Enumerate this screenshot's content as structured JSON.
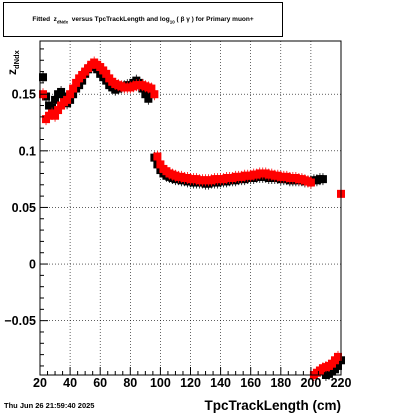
{
  "title": {
    "prefix": "Fitted",
    "z_sym": "z",
    "z_sub": "dNdx",
    "middle": "versus TpcTrackLength and log",
    "log_sub": "10",
    "paren": "( β γ )",
    "suffix": "for Primary muon+"
  },
  "footer_date": "Thu Jun 26 21:59:40 2025",
  "chart_data": {
    "type": "scatter",
    "xlabel": "TpcTrackLength (cm)",
    "ylabel_main": "z",
    "ylabel_sub": "dNdx",
    "xlim": [
      20,
      220
    ],
    "ylim": [
      -0.098,
      0.197
    ],
    "xticks": [
      20,
      40,
      60,
      80,
      100,
      120,
      140,
      160,
      180,
      200,
      220
    ],
    "yticks": [
      -0.05,
      0,
      0.05,
      0.1,
      0.15
    ],
    "ytick_labels": [
      "−0.05",
      "0",
      "0.05",
      "0.1",
      "0.15"
    ],
    "grid": true,
    "series": [
      {
        "color": "#000000",
        "x": [
          22,
          24,
          26,
          28,
          30,
          32,
          34,
          36,
          38,
          40,
          42,
          44,
          46,
          48,
          50,
          52,
          54,
          56,
          58,
          60,
          62,
          64,
          66,
          68,
          70,
          72,
          74,
          76,
          78,
          80,
          82,
          84,
          86,
          88,
          90,
          92,
          94,
          96,
          98,
          100,
          102,
          104,
          106,
          108,
          110,
          112,
          114,
          116,
          118,
          120,
          122,
          124,
          126,
          128,
          130,
          132,
          134,
          136,
          138,
          140,
          142,
          144,
          146,
          148,
          150,
          152,
          154,
          156,
          158,
          160,
          162,
          164,
          166,
          168,
          170,
          172,
          174,
          176,
          178,
          180,
          182,
          184,
          186,
          188,
          190,
          192,
          194,
          196,
          198,
          200,
          202,
          204,
          206,
          208,
          210,
          212,
          214,
          216,
          218,
          220
        ],
        "y": [
          0.165,
          0.148,
          0.14,
          0.138,
          0.145,
          0.15,
          0.152,
          0.148,
          0.142,
          0.145,
          0.15,
          0.155,
          0.158,
          0.162,
          0.168,
          0.172,
          0.174,
          0.176,
          0.172,
          0.168,
          0.165,
          0.162,
          0.158,
          0.156,
          0.154,
          0.155,
          0.156,
          0.157,
          0.158,
          0.158,
          0.16,
          0.162,
          0.16,
          0.155,
          0.15,
          0.146,
          0.15,
          0.094,
          0.088,
          0.083,
          0.08,
          0.078,
          0.077,
          0.076,
          0.075,
          0.075,
          0.074,
          0.074,
          0.073,
          0.073,
          0.072,
          0.072,
          0.072,
          0.072,
          0.071,
          0.071,
          0.072,
          0.072,
          0.072,
          0.073,
          0.073,
          0.073,
          0.074,
          0.074,
          0.074,
          0.075,
          0.075,
          0.075,
          0.076,
          0.076,
          0.076,
          0.077,
          0.077,
          0.077,
          0.077,
          0.076,
          0.076,
          0.076,
          0.076,
          0.075,
          0.075,
          0.075,
          0.074,
          0.074,
          0.074,
          0.074,
          0.074,
          0.073,
          0.073,
          0.073,
          0.074,
          0.074,
          0.075,
          0.075,
          -0.098,
          -0.097,
          -0.095,
          -0.093,
          -0.09,
          -0.085
        ]
      },
      {
        "color": "#ff0000",
        "x": [
          22,
          24,
          26,
          28,
          30,
          32,
          34,
          36,
          38,
          40,
          42,
          44,
          46,
          48,
          50,
          52,
          54,
          56,
          58,
          60,
          62,
          64,
          66,
          68,
          70,
          72,
          74,
          76,
          78,
          80,
          82,
          84,
          86,
          88,
          90,
          92,
          94,
          96,
          98,
          100,
          102,
          104,
          106,
          108,
          110,
          112,
          114,
          116,
          118,
          120,
          122,
          124,
          126,
          128,
          130,
          132,
          134,
          136,
          138,
          140,
          142,
          144,
          146,
          148,
          150,
          152,
          154,
          156,
          158,
          160,
          162,
          164,
          166,
          168,
          170,
          172,
          174,
          176,
          178,
          180,
          182,
          184,
          186,
          188,
          190,
          192,
          194,
          196,
          198,
          200,
          202,
          204,
          206,
          208,
          210,
          212,
          214,
          216,
          218,
          220
        ],
        "y": [
          0.15,
          0.128,
          0.131,
          0.133,
          0.131,
          0.136,
          0.14,
          0.143,
          0.145,
          0.15,
          0.155,
          0.16,
          0.164,
          0.167,
          0.17,
          0.173,
          0.176,
          0.178,
          0.176,
          0.174,
          0.171,
          0.168,
          0.164,
          0.161,
          0.159,
          0.158,
          0.157,
          0.156,
          0.156,
          0.156,
          0.157,
          0.158,
          0.158,
          0.158,
          0.157,
          0.156,
          0.155,
          0.15,
          0.095,
          0.088,
          0.084,
          0.082,
          0.08,
          0.079,
          0.078,
          0.077,
          0.077,
          0.076,
          0.076,
          0.075,
          0.075,
          0.075,
          0.074,
          0.074,
          0.074,
          0.074,
          0.074,
          0.075,
          0.075,
          0.075,
          0.075,
          0.076,
          0.076,
          0.076,
          0.077,
          0.077,
          0.077,
          0.078,
          0.078,
          0.078,
          0.079,
          0.079,
          0.08,
          0.08,
          0.08,
          0.079,
          0.079,
          0.078,
          0.078,
          0.077,
          0.077,
          0.077,
          0.076,
          0.076,
          0.076,
          0.075,
          0.075,
          0.074,
          0.073,
          0.072,
          -0.098,
          -0.096,
          -0.094,
          -0.092,
          -0.091,
          -0.09,
          -0.088,
          -0.085,
          -0.082,
          0.062
        ]
      }
    ]
  }
}
